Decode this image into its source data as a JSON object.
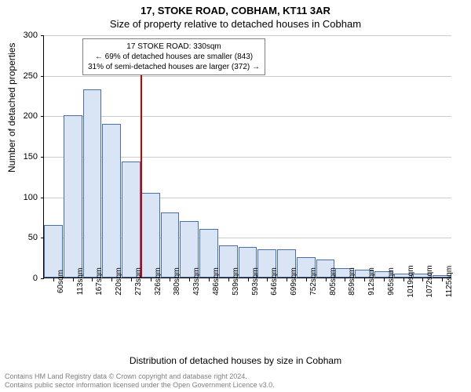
{
  "titles": {
    "main": "17, STOKE ROAD, COBHAM, KT11 3AR",
    "sub": "Size of property relative to detached houses in Cobham"
  },
  "axes": {
    "ylabel": "Number of detached properties",
    "xlabel": "Distribution of detached houses by size in Cobham",
    "ylim": [
      0,
      300
    ],
    "ytick_step": 50,
    "yticks": [
      0,
      50,
      100,
      150,
      200,
      250,
      300
    ],
    "label_fontsize": 12
  },
  "chart": {
    "type": "histogram",
    "bar_fill": "#d9e4f5",
    "bar_stroke": "#4a6fa5",
    "grid_color": "#cccccc",
    "background_color": "#ffffff",
    "categories": [
      "60sqm",
      "113sqm",
      "167sqm",
      "220sqm",
      "273sqm",
      "326sqm",
      "380sqm",
      "433sqm",
      "486sqm",
      "539sqm",
      "593sqm",
      "646sqm",
      "699sqm",
      "752sqm",
      "805sqm",
      "859sqm",
      "912sqm",
      "965sqm",
      "1019sqm",
      "1072sqm",
      "1125sqm"
    ],
    "values": [
      65,
      200,
      232,
      190,
      143,
      105,
      80,
      70,
      60,
      40,
      38,
      35,
      35,
      25,
      22,
      12,
      10,
      8,
      5,
      5,
      3
    ]
  },
  "reference_line": {
    "x_index_after": 5,
    "color": "#cc0000"
  },
  "annotation": {
    "line1": "17 STOKE ROAD: 330sqm",
    "line2": "← 69% of detached houses are smaller (843)",
    "line3": "31% of semi-detached houses are larger (372) →",
    "border_color": "#808080"
  },
  "footer": {
    "line1": "Contains HM Land Registry data © Crown copyright and database right 2024.",
    "line2": "Contains public sector information licensed under the Open Government Licence v3.0.",
    "color": "#808080"
  }
}
